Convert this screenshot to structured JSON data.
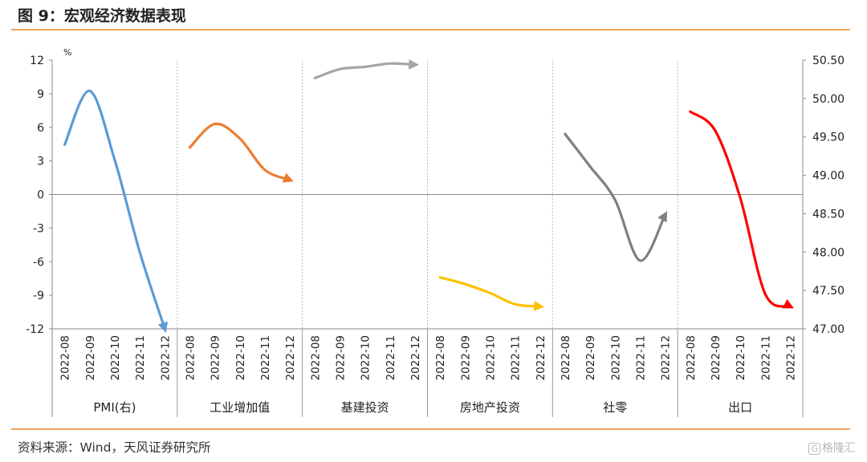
{
  "header": {
    "title": "图 9：宏观经济数据表现"
  },
  "footer": {
    "source": "资料来源：Wind，天风证券研究所",
    "watermark": "格隆汇",
    "watermark_box": "G"
  },
  "chart_data": {
    "type": "line",
    "left_axis": {
      "unit": "%",
      "ylim": [
        -12,
        12
      ],
      "ticks": [
        12,
        9,
        6,
        3,
        0,
        -3,
        -6,
        -9,
        -12
      ]
    },
    "right_axis": {
      "ylim": [
        47.0,
        50.5
      ],
      "ticks": [
        "50.50",
        "50.00",
        "49.50",
        "49.00",
        "48.50",
        "48.00",
        "47.50",
        "47.00"
      ]
    },
    "categories": [
      "2022-08",
      "2022-09",
      "2022-10",
      "2022-11",
      "2022-12"
    ],
    "grid": false,
    "panels": [
      {
        "name": "PMI(右)",
        "color": "#5b9bd5",
        "axis": "right",
        "values": [
          49.4,
          50.1,
          49.2,
          48.0,
          47.0
        ]
      },
      {
        "name": "工业增加值",
        "color": "#ed7d31",
        "axis": "left",
        "values": [
          4.2,
          6.3,
          5.0,
          2.2,
          1.3
        ]
      },
      {
        "name": "基建投资",
        "color": "#a5a5a5",
        "axis": "left",
        "values": [
          10.4,
          11.2,
          11.4,
          11.7,
          11.6
        ]
      },
      {
        "name": "房地产投资",
        "color": "#ffc000",
        "axis": "left",
        "values": [
          -7.4,
          -8.0,
          -8.8,
          -9.8,
          -10.0
        ]
      },
      {
        "name": "社零",
        "color": "#7f7f7f",
        "axis": "left",
        "values": [
          5.4,
          2.5,
          -0.5,
          -5.9,
          -1.8
        ]
      },
      {
        "name": "出口",
        "color": "#ff0000",
        "axis": "left",
        "values": [
          7.4,
          5.7,
          -0.3,
          -8.9,
          -10.0
        ]
      }
    ]
  }
}
